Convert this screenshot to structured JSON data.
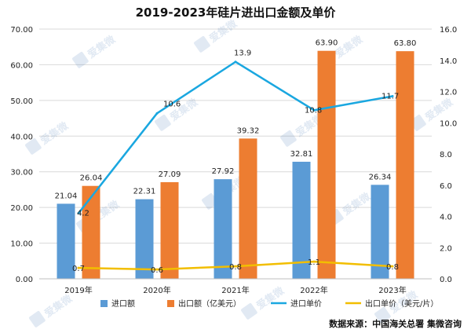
{
  "chart_data": {
    "type": "bar+line",
    "title": "2019-2023年硅片进出口金额及单价",
    "categories": [
      "2019年",
      "2020年",
      "2021年",
      "2022年",
      "2023年"
    ],
    "bar_series": [
      {
        "name": "进口额",
        "color": "#5b9bd5",
        "values": [
          21.04,
          22.31,
          27.92,
          32.81,
          26.34
        ]
      },
      {
        "name": "出口额（亿美元）",
        "color": "#ed7d31",
        "values": [
          26.04,
          27.09,
          39.32,
          63.9,
          63.8
        ]
      }
    ],
    "line_series": [
      {
        "name": "进口单价",
        "color": "#1aa7e0",
        "values": [
          4.2,
          10.6,
          13.9,
          10.8,
          11.7
        ]
      },
      {
        "name": "出口单价（美元/片）",
        "color": "#f2be00",
        "values": [
          0.7,
          0.6,
          0.8,
          1.1,
          0.8
        ]
      }
    ],
    "left_axis": {
      "ylim": [
        0,
        70
      ],
      "ticks": [
        "0.00",
        "10.00",
        "20.00",
        "30.00",
        "40.00",
        "50.00",
        "60.00",
        "70.00"
      ]
    },
    "right_axis": {
      "ylim": [
        0,
        16
      ],
      "ticks": [
        "0.0",
        "2.0",
        "4.0",
        "6.0",
        "8.0",
        "10.0",
        "12.0",
        "14.0",
        "16.0"
      ]
    },
    "bar_labels": [
      [
        "21.04",
        "22.31",
        "27.92",
        "32.81",
        "26.34"
      ],
      [
        "26.04",
        "27.09",
        "39.32",
        "63.90",
        "63.80"
      ]
    ],
    "line_labels": [
      [
        "4.2",
        "10.6",
        "13.9",
        "10.8",
        "11.7"
      ],
      [
        "0.7",
        "0.6",
        "0.8",
        "1.1",
        "0.8"
      ]
    ],
    "grid": true,
    "legend_position": "bottom"
  },
  "source": "数据来源：中国海关总署  集微咨询",
  "watermark_text": "爱集微"
}
